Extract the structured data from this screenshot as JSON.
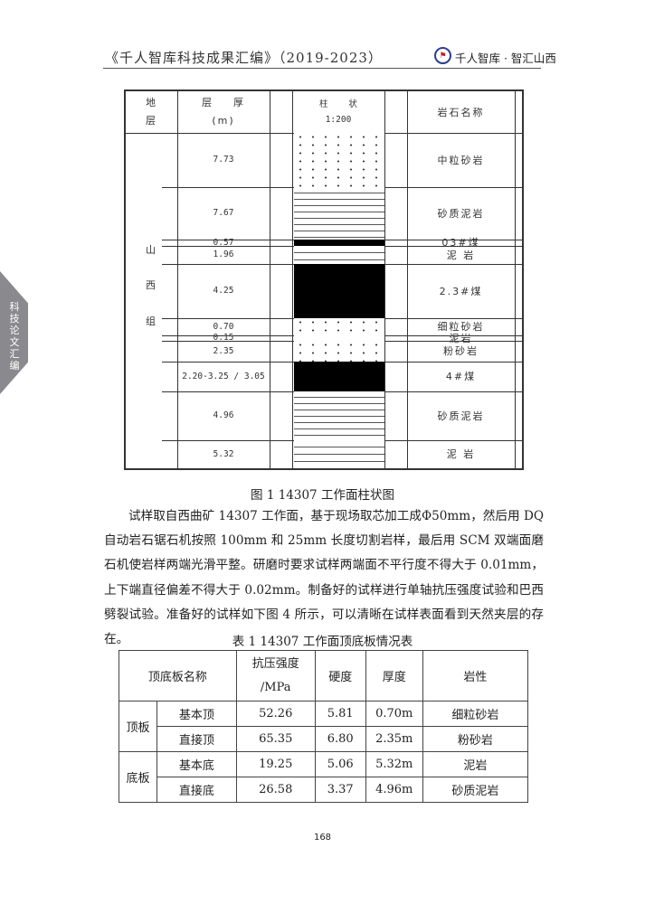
{
  "header": {
    "title": "《千人智库科技成果汇编》（2019-2023）",
    "logo_text": "千人智库",
    "brand": "千人智库 · 智汇山西"
  },
  "side_tab": "科技论文汇编",
  "figure": {
    "headers": {
      "stratum": "地\n层",
      "thickness": "层    厚\n(m)",
      "column": "柱    状\n1:200",
      "rock_name": "岩石名称"
    },
    "formation": "山\n\n西\n\n组",
    "layers": [
      {
        "thickness": "7.73",
        "name": "中粒砂岩",
        "pattern": "sand"
      },
      {
        "thickness": "7.67",
        "name": "砂质泥岩",
        "pattern": "sandmud"
      },
      {
        "thickness": "0.57",
        "name": "03#煤",
        "pattern": "coal"
      },
      {
        "thickness": "1.96",
        "name": "泥 岩",
        "pattern": "mud"
      },
      {
        "thickness": "4.25",
        "name": "2.3#煤",
        "pattern": "coal"
      },
      {
        "thickness": "0.70",
        "name": "细粒砂岩",
        "pattern": "sand"
      },
      {
        "thickness": "0.15",
        "name": "泥岩",
        "pattern": "mud"
      },
      {
        "thickness": "2.35",
        "name": "粉砂岩",
        "pattern": "sand"
      },
      {
        "thickness": "2.20-3.25 / 3.05",
        "name": "4#煤",
        "pattern": "coal"
      },
      {
        "thickness": "4.96",
        "name": "砂质泥岩",
        "pattern": "sandmud"
      },
      {
        "thickness": "5.32",
        "name": "泥 岩",
        "pattern": "mud"
      }
    ],
    "caption": "图 1 14307 工作面柱状图"
  },
  "paragraph": "试样取自西曲矿 14307 工作面，基于现场取芯加工成Φ50mm，然后用 DQ 自动岩石锯石机按照 100mm 和 25mm 长度切割岩样，最后用 SCM 双端面磨石机使岩样两端光滑平整。研磨时要求试样两端面不平行度不得大于 0.01mm，上下端直径偏差不得大于 0.02mm。制备好的试样进行单轴抗压强度试验和巴西劈裂试验。准备好的试样如下图 4 所示，可以清晰在试样表面看到天然夹层的存在。",
  "table": {
    "caption": "表 1 14307 工作面顶底板情况表",
    "headers": {
      "name": "顶底板名称",
      "strength": "抗压强度\n/MPa",
      "hardness": "硬度",
      "thickness": "厚度",
      "lithology": "岩性"
    },
    "groups": [
      {
        "label": "顶板",
        "rows": [
          {
            "name": "基本顶",
            "strength": "52.26",
            "hardness": "5.81",
            "thickness": "0.70m",
            "lithology": "细粒砂岩"
          },
          {
            "name": "直接顶",
            "strength": "65.35",
            "hardness": "6.80",
            "thickness": "2.35m",
            "lithology": "粉砂岩"
          }
        ]
      },
      {
        "label": "底板",
        "rows": [
          {
            "name": "基本底",
            "strength": "19.25",
            "hardness": "5.06",
            "thickness": "5.32m",
            "lithology": "泥岩"
          },
          {
            "name": "直接底",
            "strength": "26.58",
            "hardness": "3.37",
            "thickness": "4.96m",
            "lithology": "砂质泥岩"
          }
        ]
      }
    ]
  },
  "page_number": "168"
}
